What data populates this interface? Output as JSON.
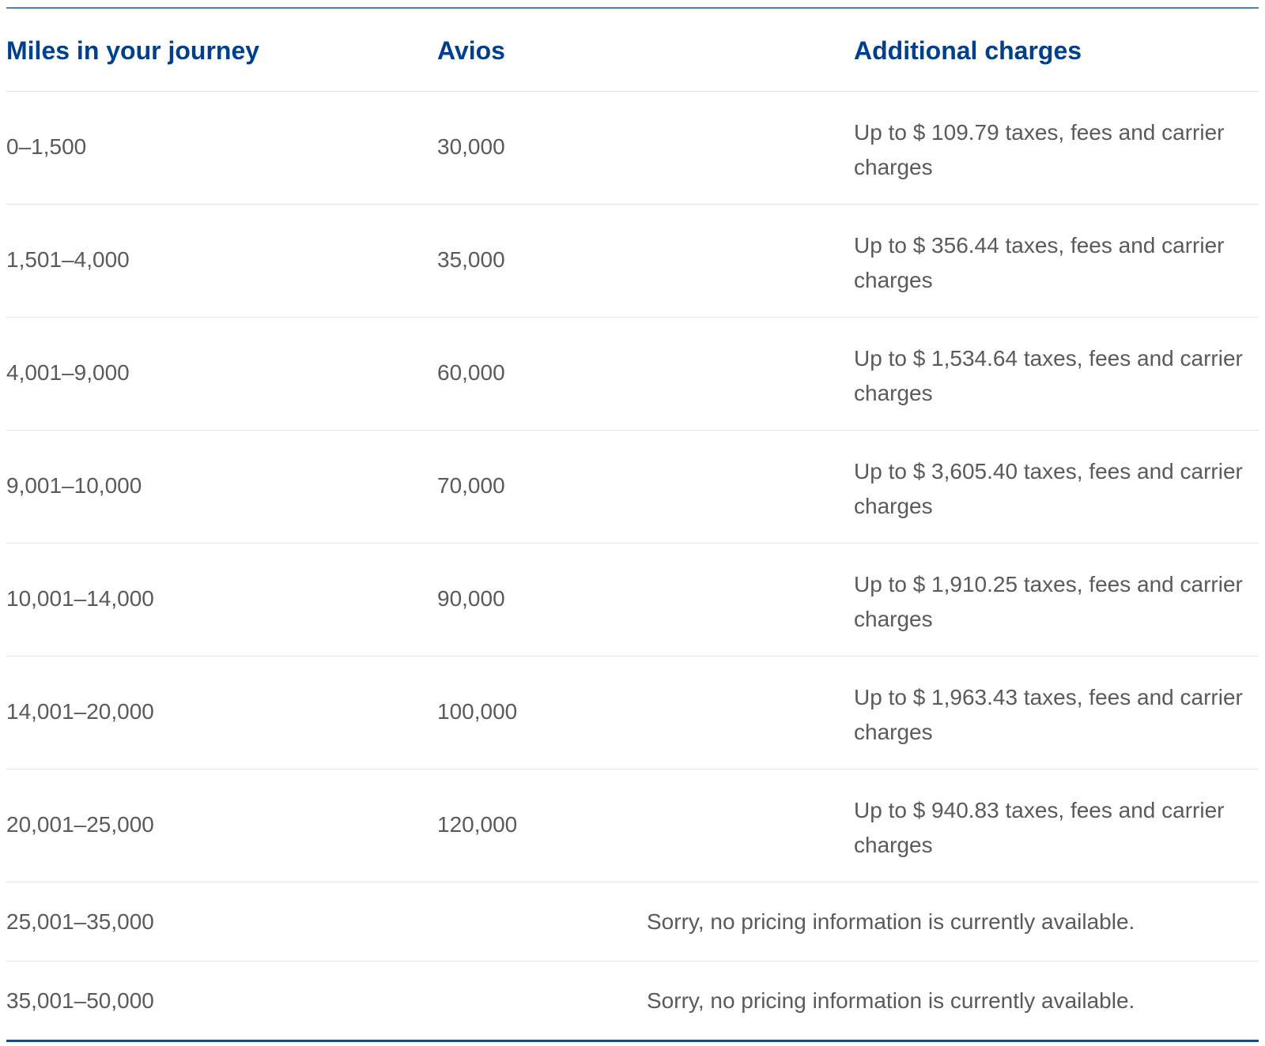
{
  "table": {
    "headers": {
      "miles": "Miles in your journey",
      "avios": "Avios",
      "charges": "Additional charges"
    },
    "rows": [
      {
        "miles": "0–1,500",
        "avios": "30,000",
        "charges": "Up to $ 109.79 taxes, fees and carrier charges"
      },
      {
        "miles": "1,501–4,000",
        "avios": "35,000",
        "charges": "Up to $ 356.44 taxes, fees and carrier charges"
      },
      {
        "miles": "4,001–9,000",
        "avios": "60,000",
        "charges": "Up to $ 1,534.64 taxes, fees and carrier charges"
      },
      {
        "miles": "9,001–10,000",
        "avios": "70,000",
        "charges": "Up to $ 3,605.40 taxes, fees and carrier charges"
      },
      {
        "miles": "10,001–14,000",
        "avios": "90,000",
        "charges": "Up to $ 1,910.25 taxes, fees and carrier charges"
      },
      {
        "miles": "14,001–20,000",
        "avios": "100,000",
        "charges": "Up to $ 1,963.43 taxes, fees and carrier charges"
      },
      {
        "miles": "20,001–25,000",
        "avios": "120,000",
        "charges": "Up to $ 940.83 taxes, fees and carrier charges"
      },
      {
        "miles": "25,001–35,000",
        "unavailable": "Sorry, no pricing information is currently available."
      },
      {
        "miles": "35,001–50,000",
        "unavailable": "Sorry, no pricing information is currently available."
      }
    ]
  },
  "colors": {
    "header_text": "#003f8c",
    "body_text": "#5a5a5a",
    "top_border": "#4a84ad",
    "bottom_border": "#1b4a7f",
    "row_divider": "#e6e6e6"
  }
}
